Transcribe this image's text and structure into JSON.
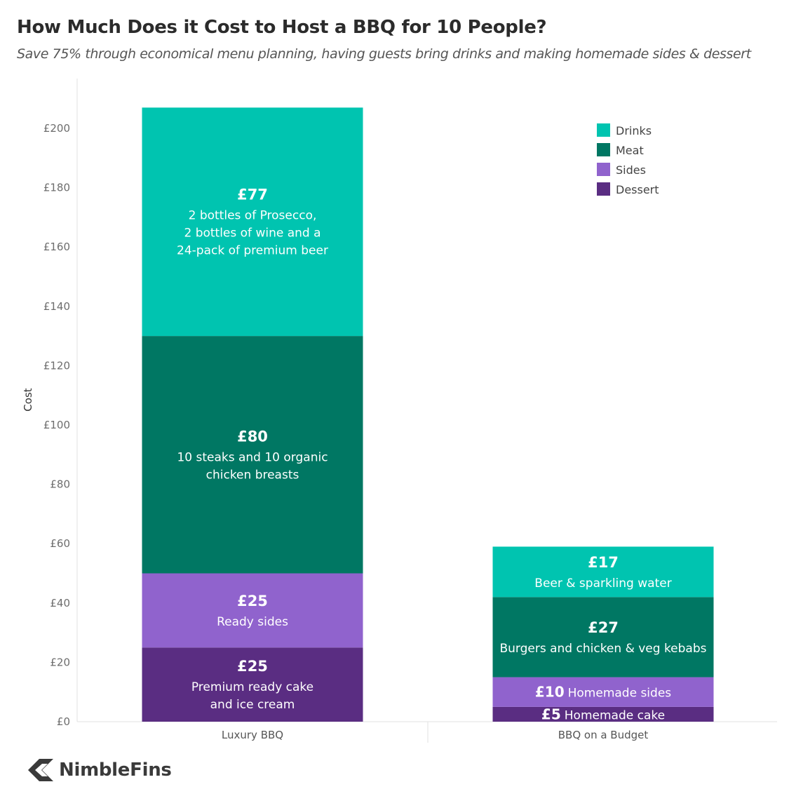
{
  "chart_data": {
    "type": "bar",
    "stacked": true,
    "title": "How Much Does it Cost to Host a BBQ for 10 People?",
    "subtitle": "Save 75% through economical menu planning, having guests bring drinks and making homemade sides & dessert",
    "ylabel": "Cost",
    "xlabel": "",
    "ylim": [
      0,
      210
    ],
    "yticks": [
      0,
      20,
      40,
      60,
      80,
      100,
      120,
      140,
      160,
      180,
      200
    ],
    "ytick_labels": [
      "£0",
      "£20",
      "£40",
      "£60",
      "£80",
      "£100",
      "£120",
      "£140",
      "£160",
      "£180",
      "£200"
    ],
    "categories": [
      "Luxury BBQ",
      "BBQ on a Budget"
    ],
    "series": [
      {
        "name": "Dessert",
        "color": "#5a2d82",
        "values": [
          25,
          5
        ],
        "value_labels": [
          "£25",
          "£5"
        ],
        "descriptions": [
          [
            "Premium ready cake",
            "and ice cream"
          ],
          [
            "Homemade cake"
          ]
        ]
      },
      {
        "name": "Sides",
        "color": "#9063cd",
        "values": [
          25,
          10
        ],
        "value_labels": [
          "£25",
          "£10"
        ],
        "descriptions": [
          [
            "Ready sides"
          ],
          [
            "Homemade sides"
          ]
        ]
      },
      {
        "name": "Meat",
        "color": "#007763",
        "values": [
          80,
          27
        ],
        "value_labels": [
          "£80",
          "£27"
        ],
        "descriptions": [
          [
            "10  steaks and 10 organic",
            "chicken breasts"
          ],
          [
            "Burgers and chicken & veg kebabs"
          ]
        ]
      },
      {
        "name": "Drinks",
        "color": "#00c4b0",
        "values": [
          77,
          17
        ],
        "value_labels": [
          "£77",
          "£17"
        ],
        "descriptions": [
          [
            "2 bottles of Prosecco,",
            "2 bottles of wine and a",
            "24-pack of premium beer"
          ],
          [
            "Beer & sparkling water"
          ]
        ]
      }
    ],
    "legend": {
      "placement": "top-right",
      "order": [
        "Drinks",
        "Meat",
        "Sides",
        "Dessert"
      ]
    },
    "grid": false
  },
  "logo": {
    "text": "NimbleFins",
    "icon": "chevron-left-icon"
  }
}
